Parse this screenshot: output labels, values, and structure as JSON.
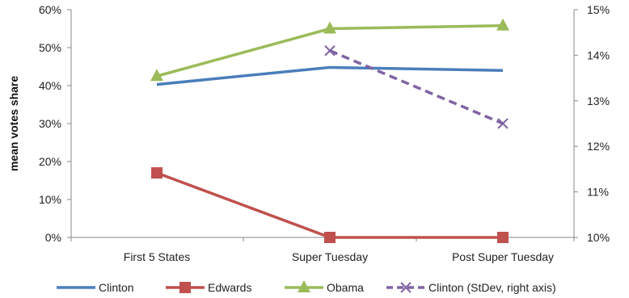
{
  "chart_data": {
    "type": "line",
    "categories": [
      "First 5 States",
      "Super Tuesday",
      "Post Super Tuesday"
    ],
    "ylabel": "mean votes share",
    "ylim": [
      0,
      60
    ],
    "y_ticks": [
      "0%",
      "10%",
      "20%",
      "30%",
      "40%",
      "50%",
      "60%"
    ],
    "y2lim": [
      10,
      15
    ],
    "y2_ticks": [
      "10%",
      "11%",
      "12%",
      "13%",
      "14%",
      "15%"
    ],
    "grid": false,
    "legend_position": "bottom",
    "series": [
      {
        "name": "Clinton",
        "axis": "left",
        "values": [
          40.3,
          44.8,
          44.0
        ],
        "color": "#4a7ebb",
        "marker": "none",
        "dash": false
      },
      {
        "name": "Edwards",
        "axis": "left",
        "values": [
          17.0,
          0.0,
          0.0
        ],
        "color": "#c0504d",
        "marker": "square",
        "dash": false
      },
      {
        "name": "Obama",
        "axis": "left",
        "values": [
          42.5,
          55.0,
          55.8
        ],
        "color": "#9bbb59",
        "marker": "triangle",
        "dash": false
      },
      {
        "name": "Clinton (StDev, right axis)",
        "axis": "right",
        "values": [
          null,
          14.1,
          12.5
        ],
        "color": "#8064a2",
        "marker": "x",
        "dash": true
      }
    ]
  }
}
